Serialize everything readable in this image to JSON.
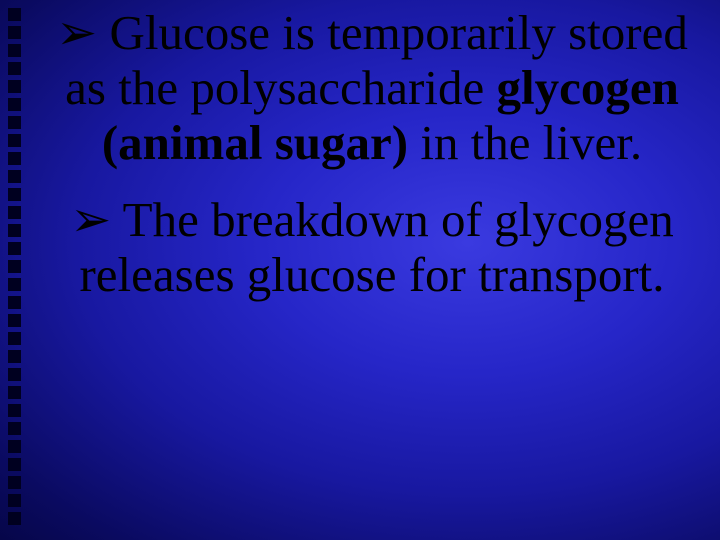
{
  "decor": {
    "square_count": 29,
    "square_color": "#000020"
  },
  "bullets": {
    "glyph": "➢"
  },
  "paragraphs": [
    {
      "pre_bullet": "",
      "plain_before": " Glucose is temporarily stored as the polysaccharide ",
      "bold": "glycogen (animal sugar)",
      "plain_after": " in the liver."
    },
    {
      "pre_bullet": "",
      "plain_before": " The breakdown of glycogen releases glucose for transport.",
      "bold": "",
      "plain_after": ""
    }
  ]
}
